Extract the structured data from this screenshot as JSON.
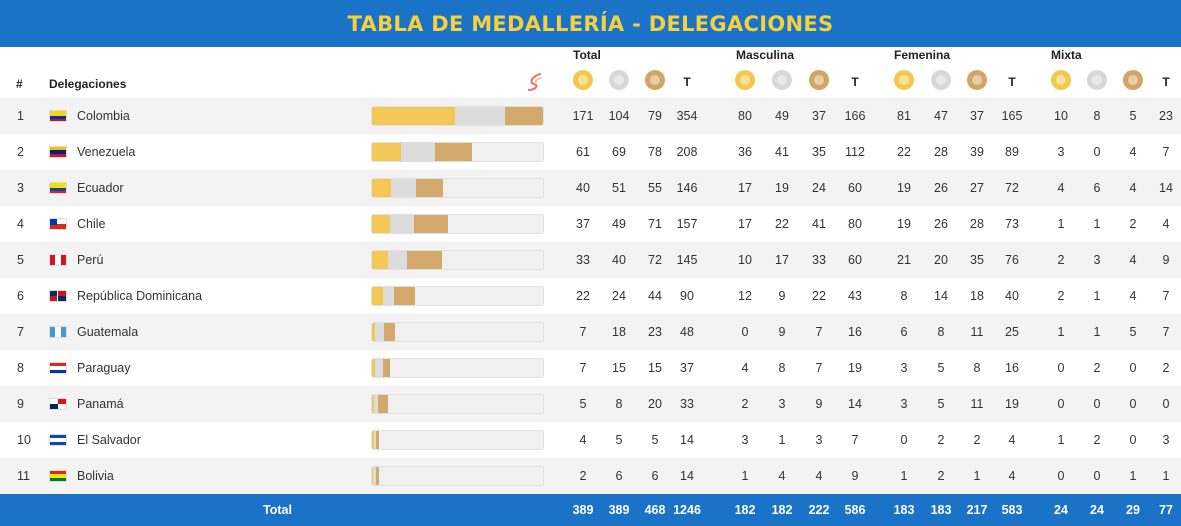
{
  "title": "TABLA DE MEDALLERÍA - DELEGACIONES",
  "headers": {
    "rank": "#",
    "delegation": "Delegaciones",
    "groups": [
      "Total",
      "Masculina",
      "Femenina",
      "Mixta"
    ],
    "total_col": "T"
  },
  "colors": {
    "gold": "#f3c857",
    "silver": "#dcdcdc",
    "bronze": "#d3a86a",
    "header_blue": "#1a73c6",
    "title_yellow": "#f7d03c"
  },
  "rows": [
    {
      "rank": "1",
      "name": "Colombia",
      "flag": "colombia-flag",
      "total": [
        "171",
        "104",
        "79",
        "354"
      ],
      "masc": [
        "80",
        "49",
        "37",
        "166"
      ],
      "fem": [
        "81",
        "47",
        "37",
        "165"
      ],
      "mix": [
        "10",
        "8",
        "5",
        "23"
      ]
    },
    {
      "rank": "2",
      "name": "Venezuela",
      "flag": "venezuela-flag",
      "total": [
        "61",
        "69",
        "78",
        "208"
      ],
      "masc": [
        "36",
        "41",
        "35",
        "112"
      ],
      "fem": [
        "22",
        "28",
        "39",
        "89"
      ],
      "mix": [
        "3",
        "0",
        "4",
        "7"
      ]
    },
    {
      "rank": "3",
      "name": "Ecuador",
      "flag": "ecuador-flag",
      "total": [
        "40",
        "51",
        "55",
        "146"
      ],
      "masc": [
        "17",
        "19",
        "24",
        "60"
      ],
      "fem": [
        "19",
        "26",
        "27",
        "72"
      ],
      "mix": [
        "4",
        "6",
        "4",
        "14"
      ]
    },
    {
      "rank": "4",
      "name": "Chile",
      "flag": "chile-flag",
      "total": [
        "37",
        "49",
        "71",
        "157"
      ],
      "masc": [
        "17",
        "22",
        "41",
        "80"
      ],
      "fem": [
        "19",
        "26",
        "28",
        "73"
      ],
      "mix": [
        "1",
        "1",
        "2",
        "4"
      ]
    },
    {
      "rank": "5",
      "name": "Perú",
      "flag": "peru-flag",
      "total": [
        "33",
        "40",
        "72",
        "145"
      ],
      "masc": [
        "10",
        "17",
        "33",
        "60"
      ],
      "fem": [
        "21",
        "20",
        "35",
        "76"
      ],
      "mix": [
        "2",
        "3",
        "4",
        "9"
      ]
    },
    {
      "rank": "6",
      "name": "República Dominicana",
      "flag": "dominican-republic-flag",
      "total": [
        "22",
        "24",
        "44",
        "90"
      ],
      "masc": [
        "12",
        "9",
        "22",
        "43"
      ],
      "fem": [
        "8",
        "14",
        "18",
        "40"
      ],
      "mix": [
        "2",
        "1",
        "4",
        "7"
      ]
    },
    {
      "rank": "7",
      "name": "Guatemala",
      "flag": "guatemala-flag",
      "total": [
        "7",
        "18",
        "23",
        "48"
      ],
      "masc": [
        "0",
        "9",
        "7",
        "16"
      ],
      "fem": [
        "6",
        "8",
        "11",
        "25"
      ],
      "mix": [
        "1",
        "1",
        "5",
        "7"
      ]
    },
    {
      "rank": "8",
      "name": "Paraguay",
      "flag": "paraguay-flag",
      "total": [
        "7",
        "15",
        "15",
        "37"
      ],
      "masc": [
        "4",
        "8",
        "7",
        "19"
      ],
      "fem": [
        "3",
        "5",
        "8",
        "16"
      ],
      "mix": [
        "0",
        "2",
        "0",
        "2"
      ]
    },
    {
      "rank": "9",
      "name": "Panamá",
      "flag": "panama-flag",
      "total": [
        "5",
        "8",
        "20",
        "33"
      ],
      "masc": [
        "2",
        "3",
        "9",
        "14"
      ],
      "fem": [
        "3",
        "5",
        "11",
        "19"
      ],
      "mix": [
        "0",
        "0",
        "0",
        "0"
      ]
    },
    {
      "rank": "10",
      "name": "El Salvador",
      "flag": "el-salvador-flag",
      "total": [
        "4",
        "5",
        "5",
        "14"
      ],
      "masc": [
        "3",
        "1",
        "3",
        "7"
      ],
      "fem": [
        "0",
        "2",
        "2",
        "4"
      ],
      "mix": [
        "1",
        "2",
        "0",
        "3"
      ]
    },
    {
      "rank": "11",
      "name": "Bolivia",
      "flag": "bolivia-flag",
      "total": [
        "2",
        "6",
        "6",
        "14"
      ],
      "masc": [
        "1",
        "4",
        "4",
        "9"
      ],
      "fem": [
        "1",
        "2",
        "1",
        "4"
      ],
      "mix": [
        "0",
        "0",
        "1",
        "1"
      ]
    }
  ],
  "totals": {
    "label": "Total",
    "total": [
      "389",
      "389",
      "468",
      "1246"
    ],
    "masc": [
      "182",
      "182",
      "222",
      "586"
    ],
    "fem": [
      "183",
      "183",
      "217",
      "583"
    ],
    "mix": [
      "24",
      "24",
      "29",
      "77"
    ]
  }
}
